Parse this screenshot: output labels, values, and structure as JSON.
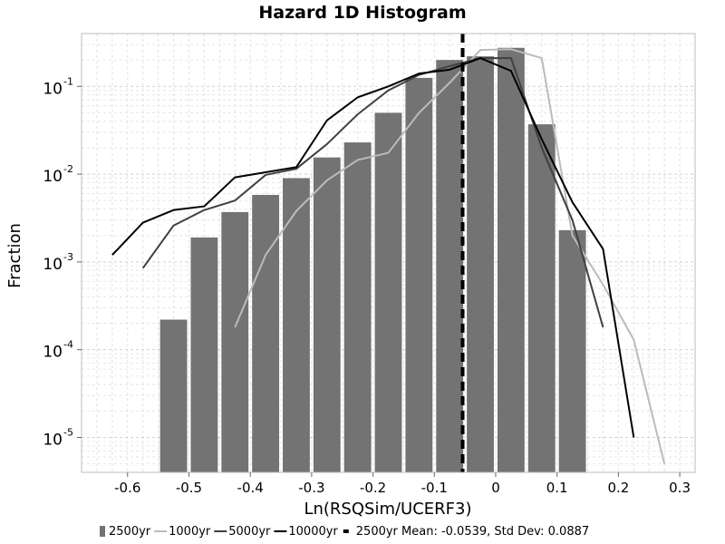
{
  "chart_data": {
    "type": "bar",
    "title": "Hazard 1D Histogram",
    "xlabel": "Ln(RSQSim/UCERF3)",
    "ylabel": "Fraction",
    "xlim": [
      -0.675,
      0.325
    ],
    "ylim": [
      4e-06,
      0.4
    ],
    "yscale": "log",
    "grid": true,
    "legend_position": "bottom",
    "x_ticks": [
      -0.6,
      -0.5,
      -0.4,
      -0.3,
      -0.2,
      -0.1,
      0,
      0.1,
      0.2,
      0.3
    ],
    "x_tick_labels": [
      "-0.6",
      "-0.5",
      "-0.4",
      "-0.3",
      "-0.2",
      "-0.1",
      "0",
      "0.1",
      "0.2",
      "0.3"
    ],
    "y_ticks": [
      {
        "value": 0.1,
        "base": "10",
        "exp": "-1"
      },
      {
        "value": 0.01,
        "base": "10",
        "exp": "-2"
      },
      {
        "value": 0.001,
        "base": "10",
        "exp": "-3"
      },
      {
        "value": 0.0001,
        "base": "10",
        "exp": "-4"
      },
      {
        "value": 1e-05,
        "base": "10",
        "exp": "-5"
      }
    ],
    "bar_series": {
      "name": "2500yr",
      "color": "#737373",
      "bin_width": 0.05,
      "centers": [
        -0.525,
        -0.475,
        -0.425,
        -0.375,
        -0.325,
        -0.275,
        -0.225,
        -0.175,
        -0.125,
        -0.075,
        -0.025,
        0.025,
        0.075,
        0.125
      ],
      "values": [
        0.00022,
        0.0019,
        0.0037,
        0.0058,
        0.009,
        0.0155,
        0.023,
        0.05,
        0.125,
        0.2,
        0.22,
        0.275,
        0.037,
        0.0023
      ]
    },
    "line_series": [
      {
        "name": "1000yr",
        "color": "#bbbbbb",
        "x": [
          -0.425,
          -0.375,
          -0.325,
          -0.275,
          -0.225,
          -0.175,
          -0.125,
          -0.075,
          -0.025,
          0.025,
          0.075,
          0.125,
          0.175,
          0.225,
          0.275
        ],
        "y": [
          0.00018,
          0.0012,
          0.0038,
          0.0085,
          0.0145,
          0.0175,
          0.05,
          0.11,
          0.26,
          0.265,
          0.21,
          0.002,
          0.00055,
          0.00013,
          5e-06
        ]
      },
      {
        "name": "5000yr",
        "color": "#404040",
        "x": [
          -0.575,
          -0.525,
          -0.475,
          -0.425,
          -0.375,
          -0.325,
          -0.275,
          -0.225,
          -0.175,
          -0.125,
          -0.075,
          -0.025,
          0.025,
          0.075,
          0.125,
          0.175
        ],
        "y": [
          0.00085,
          0.0026,
          0.0039,
          0.005,
          0.0098,
          0.0115,
          0.022,
          0.048,
          0.09,
          0.135,
          0.17,
          0.21,
          0.21,
          0.02,
          0.003,
          0.00018
        ]
      },
      {
        "name": "10000yr",
        "color": "#000000",
        "x": [
          -0.625,
          -0.575,
          -0.525,
          -0.475,
          -0.425,
          -0.375,
          -0.325,
          -0.275,
          -0.225,
          -0.175,
          -0.125,
          -0.075,
          -0.025,
          0.025,
          0.075,
          0.125,
          0.175,
          0.225
        ],
        "y": [
          0.0012,
          0.0028,
          0.0039,
          0.0043,
          0.0092,
          0.0105,
          0.012,
          0.041,
          0.075,
          0.1,
          0.14,
          0.155,
          0.21,
          0.15,
          0.025,
          0.0048,
          0.0014,
          1e-05
        ]
      }
    ],
    "mean_line": {
      "x": -0.0539,
      "color": "#000000",
      "style": "dashed"
    },
    "legend": [
      {
        "label": "2500yr",
        "kind": "bar",
        "color": "#737373"
      },
      {
        "label": "1000yr",
        "kind": "line",
        "color": "#bbbbbb"
      },
      {
        "label": "5000yr",
        "kind": "line",
        "color": "#404040"
      },
      {
        "label": "10000yr",
        "kind": "line",
        "color": "#000000"
      },
      {
        "label": "2500yr Mean: -0.0539, Std Dev: 0.0887",
        "kind": "dashed",
        "color": "#000000"
      }
    ]
  }
}
